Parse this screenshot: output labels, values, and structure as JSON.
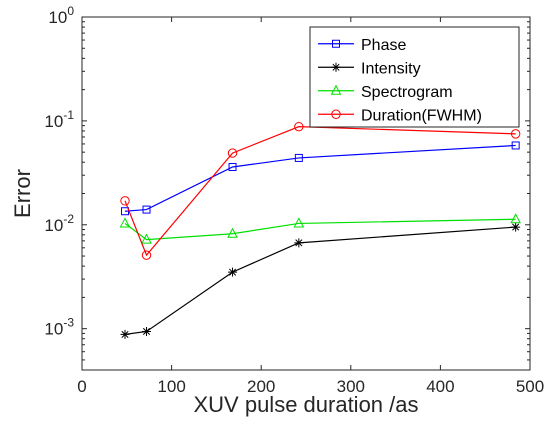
{
  "chart_data": {
    "type": "line",
    "title": "",
    "xlabel": "XUV pulse duration /as",
    "ylabel": "Error",
    "xlim": [
      0,
      500
    ],
    "ylim": [
      0.0004,
      1
    ],
    "y_scale": "log",
    "x_ticks": [
      0,
      100,
      200,
      300,
      400,
      500
    ],
    "y_ticks": [
      {
        "value": 0.001,
        "base": "10",
        "exp": "-3"
      },
      {
        "value": 0.01,
        "base": "10",
        "exp": "-2"
      },
      {
        "value": 0.1,
        "base": "10",
        "exp": "-1"
      },
      {
        "value": 1,
        "base": "10",
        "exp": "0"
      }
    ],
    "grid": false,
    "legend_position": "top-right",
    "series": [
      {
        "name": "Phase",
        "color": "#0000ff",
        "marker": "square",
        "x": [
          48,
          72,
          168,
          242,
          484
        ],
        "y": [
          0.0135,
          0.014,
          0.036,
          0.044,
          0.058
        ]
      },
      {
        "name": "Intensity",
        "color": "#000000",
        "marker": "asterisk",
        "x": [
          48,
          72,
          168,
          242,
          484
        ],
        "y": [
          0.00088,
          0.00094,
          0.0035,
          0.0067,
          0.0095
        ]
      },
      {
        "name": "Spectrogram",
        "color": "#00e000",
        "marker": "triangle",
        "x": [
          48,
          72,
          168,
          242,
          484
        ],
        "y": [
          0.0103,
          0.0072,
          0.0082,
          0.0103,
          0.0113
        ]
      },
      {
        "name": "Duration(FWHM)",
        "color": "#ff0000",
        "marker": "circle",
        "x": [
          48,
          72,
          168,
          242,
          484
        ],
        "y": [
          0.017,
          0.0051,
          0.049,
          0.088,
          0.075
        ]
      }
    ]
  }
}
